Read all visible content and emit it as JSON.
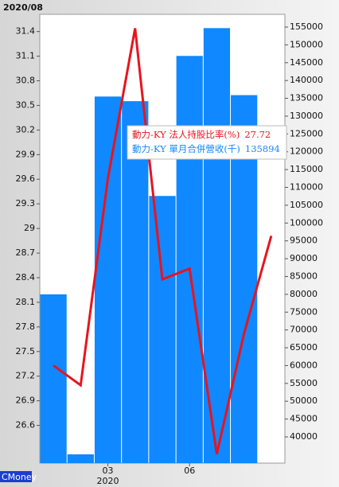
{
  "chart_data": {
    "type": "bar-line",
    "header": "2020/08",
    "source": "CMoney",
    "categories": [
      null,
      null,
      "03",
      null,
      null,
      "06",
      null,
      null,
      null
    ],
    "year_label": "2020",
    "year_label_index": 2,
    "series": [
      {
        "name": "動力-KY 法人持股比率(%)",
        "type": "line",
        "axis": "y",
        "color": "#e8141e",
        "values": [
          27.33,
          27.09,
          29.61,
          31.44,
          28.38,
          28.51,
          26.25,
          27.72,
          28.91
        ]
      },
      {
        "name": "動力-KY 單月合併營收(千)",
        "type": "bar",
        "axis": "y2",
        "color": "#1088ff",
        "values": [
          80000,
          35100,
          135500,
          134200,
          107600,
          146900,
          154700,
          135894,
          null
        ]
      }
    ],
    "tooltip_index": 7,
    "ylim": [
      26.14,
      31.61
    ],
    "yticks": [
      26.6,
      26.9,
      27.2,
      27.5,
      27.8,
      28.1,
      28.4,
      28.7,
      29,
      29.3,
      29.6,
      29.9,
      30.2,
      30.5,
      30.8,
      31.1,
      31.4
    ],
    "y2lim": [
      32630,
      158570
    ],
    "y2ticks": [
      40000,
      45000,
      50000,
      55000,
      60000,
      65000,
      70000,
      75000,
      80000,
      85000,
      90000,
      95000,
      100000,
      105000,
      110000,
      115000,
      120000,
      125000,
      130000,
      135000,
      140000,
      145000,
      150000,
      155000
    ]
  }
}
